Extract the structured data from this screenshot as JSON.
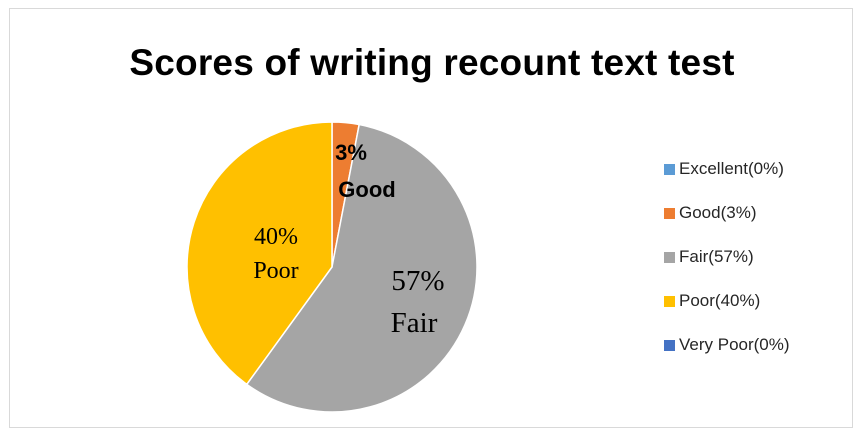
{
  "chart_data": {
    "type": "pie",
    "title": "Scores of writing recount text test",
    "slices": [
      {
        "category": "Excellent",
        "value": 0,
        "legend": "Excellent(0%)",
        "color": "#5b9bd5"
      },
      {
        "category": "Good",
        "value": 3,
        "legend": "Good(3%)",
        "color": "#ed7d31",
        "label_pct": "3%",
        "label_name": "Good"
      },
      {
        "category": "Fair",
        "value": 57,
        "legend": "Fair(57%)",
        "color": "#a5a5a5",
        "label_pct": "57%",
        "label_name": "Fair"
      },
      {
        "category": "Poor",
        "value": 40,
        "legend": "Poor(40%)",
        "color": "#ffc000",
        "label_pct": "40%",
        "label_name": "Poor"
      },
      {
        "category": "Very Poor",
        "value": 0,
        "legend": "Very Poor(0%)",
        "color": "#4472c4"
      }
    ],
    "legend_position": "right",
    "start_angle": "top, clockwise"
  }
}
